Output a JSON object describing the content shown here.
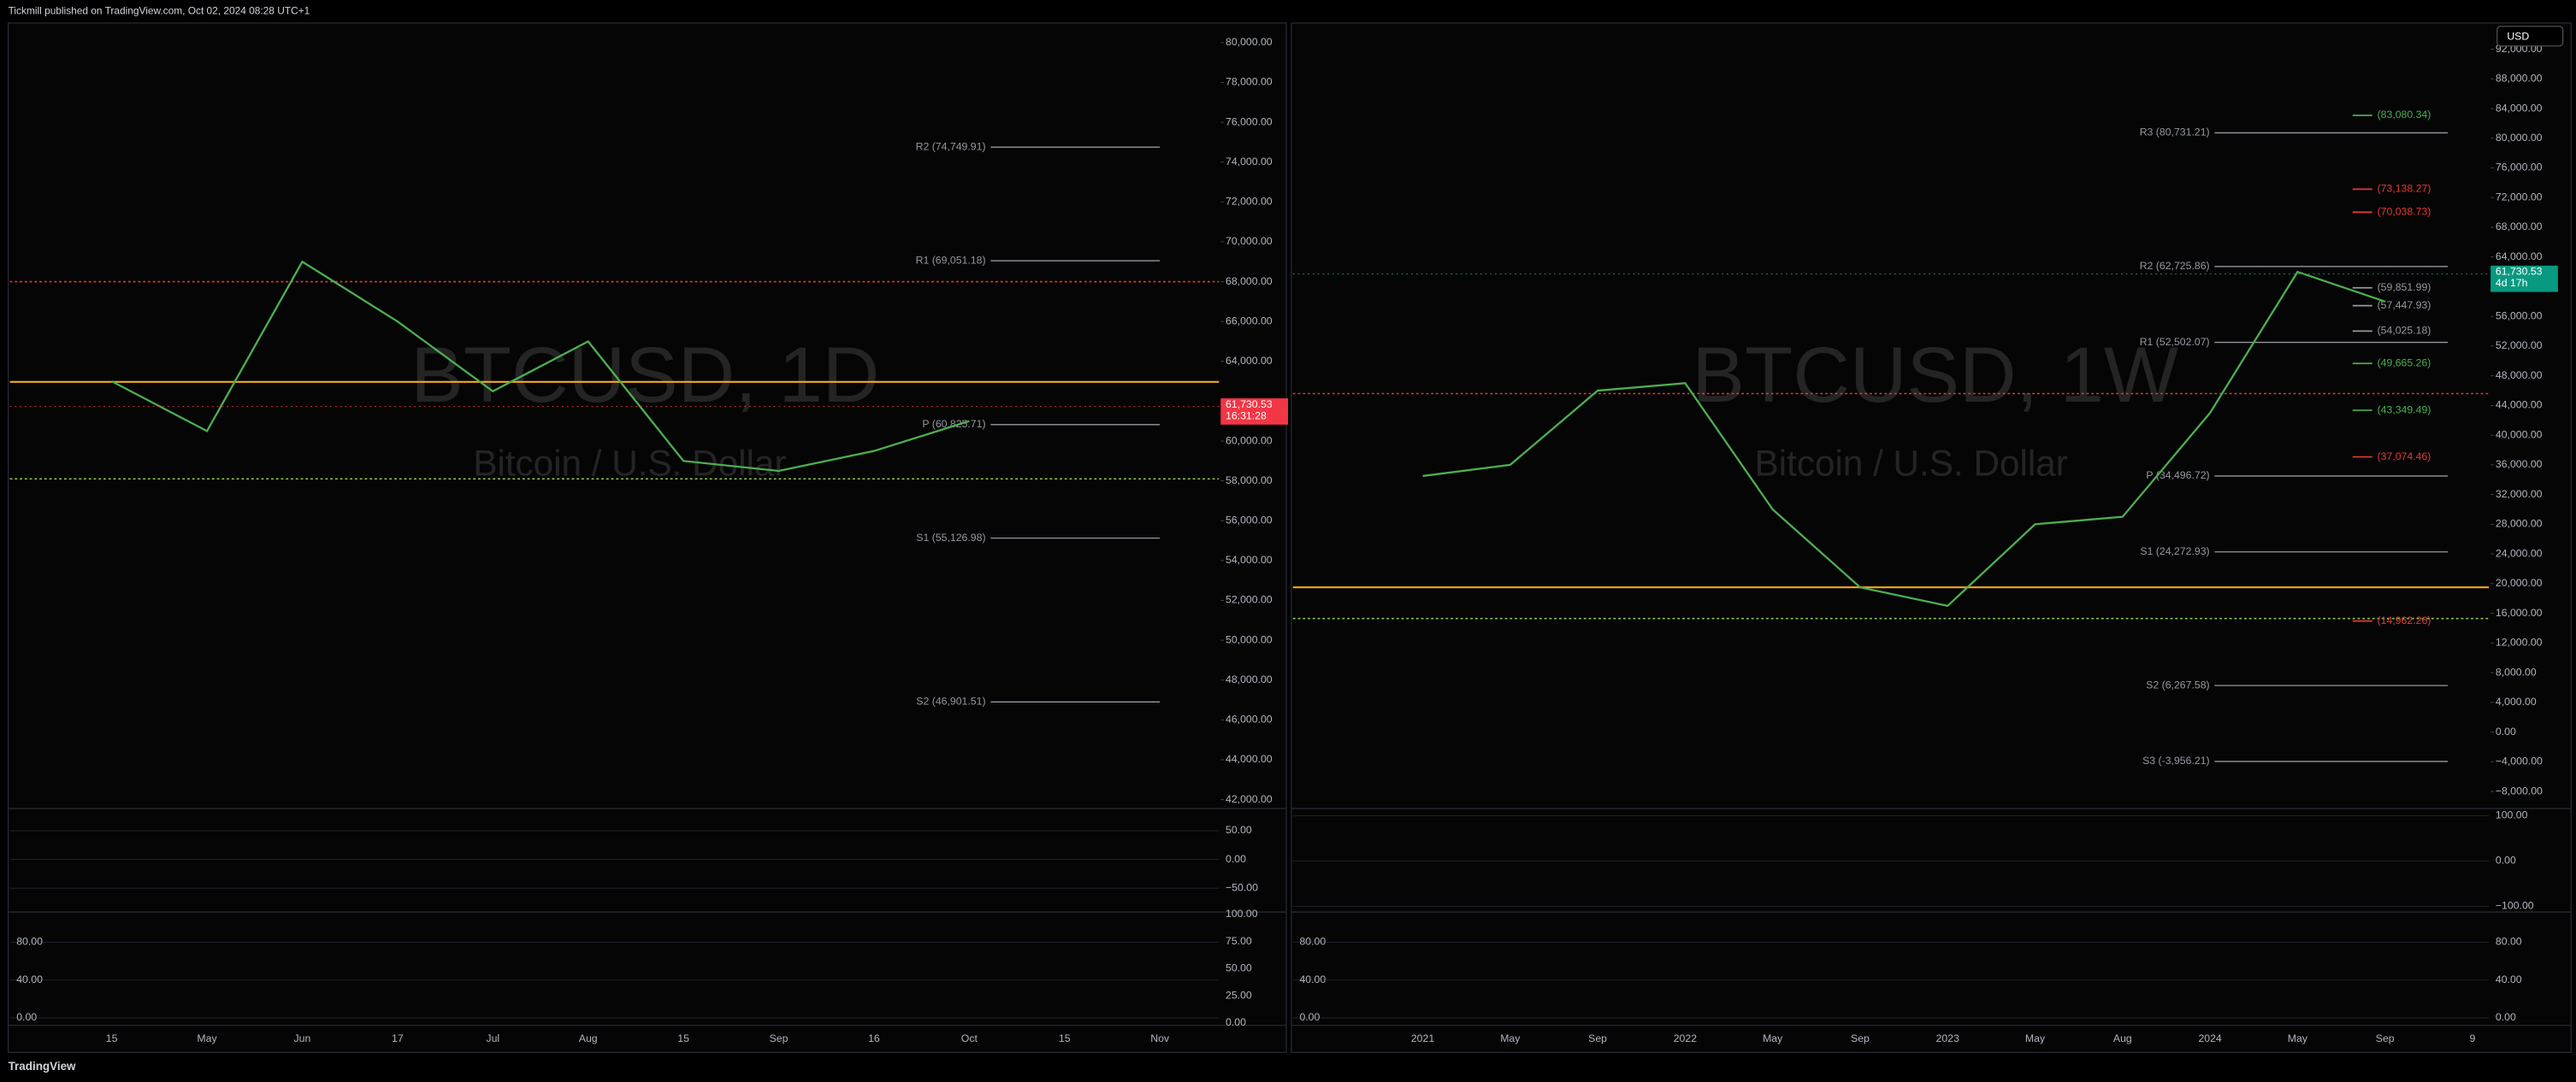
{
  "header": "Tickmill published on TradingView.com, Oct 02, 2024 08:28 UTC+1",
  "footer": "TradingView",
  "chart_data": [
    {
      "type": "line",
      "title": "BTCUSD, 1D",
      "subtitle": "Bitcoin / U.S. Dollar",
      "categories": [
        "15",
        "May",
        "Jun",
        "17",
        "Jul",
        "Aug",
        "15",
        "Sep",
        "16",
        "Oct",
        "15",
        "Nov"
      ],
      "values": [
        63000,
        60500,
        69000,
        66000,
        62500,
        65000,
        59000,
        58500,
        59500,
        61000,
        null,
        null
      ],
      "color": "#4caf50",
      "ylim": [
        41590,
        80900
      ],
      "yticks": [
        {
          "value": 42000,
          "label": "42,000.00"
        },
        {
          "value": 44000,
          "label": "44,000.00"
        },
        {
          "value": 46000,
          "label": "46,000.00"
        },
        {
          "value": 48000,
          "label": "48,000.00"
        },
        {
          "value": 50000,
          "label": "50,000.00"
        },
        {
          "value": 52000,
          "label": "52,000.00"
        },
        {
          "value": 54000,
          "label": "54,000.00"
        },
        {
          "value": 56000,
          "label": "56,000.00"
        },
        {
          "value": 58000,
          "label": "58,000.00"
        },
        {
          "value": 60000,
          "label": "60,000.00"
        },
        {
          "value": 64000,
          "label": "64,000.00"
        },
        {
          "value": 66000,
          "label": "66,000.00"
        },
        {
          "value": 68000,
          "label": "68,000.00"
        },
        {
          "value": 70000,
          "label": "70,000.00"
        },
        {
          "value": 72000,
          "label": "72,000.00"
        },
        {
          "value": 74000,
          "label": "74,000.00"
        },
        {
          "value": 76000,
          "label": "76,000.00"
        },
        {
          "value": 78000,
          "label": "78,000.00"
        },
        {
          "value": 80000,
          "label": "80,000.00"
        }
      ],
      "last_price": {
        "value": 61730.53,
        "label": "61,730.53",
        "color": "#f23645"
      },
      "countdown": "16:31:28",
      "pivot_levels": [
        {
          "value": 74749.91,
          "label": "R2 (74,749.91)"
        },
        {
          "value": 69051.18,
          "label": "R1 (69,051.18)"
        },
        {
          "value": 60825.71,
          "label": "P (60,825.71)"
        },
        {
          "value": 55126.98,
          "label": "S1 (55,126.98)"
        },
        {
          "value": 46901.51,
          "label": "S2 (46,901.51)"
        }
      ],
      "levels": [],
      "hlines": [
        {
          "value": 62970,
          "color": "#f5a623",
          "dash": false
        },
        {
          "value": 68000,
          "color": "#e53935",
          "dash": true
        },
        {
          "value": 58100,
          "color": "#8bc34a",
          "dash": true
        }
      ],
      "panels": [
        {
          "ylim": [
            -90,
            87
          ],
          "yticks": [
            {
              "value": 50,
              "label": "50.00"
            },
            {
              "value": 0,
              "label": "0.00"
            },
            {
              "value": -50,
              "label": "−50.00"
            }
          ]
        },
        {
          "ylim": [
            -7,
            111
          ],
          "yticks": [
            {
              "value": 80,
              "label": "80.00"
            },
            {
              "value": 40,
              "label": "40.00"
            },
            {
              "value": 0,
              "label": "0.00"
            }
          ],
          "y2lim": [
            -1.5,
            101.5
          ],
          "y2ticks": [
            {
              "value": 100,
              "label": "100.00"
            },
            {
              "value": 75,
              "label": "75.00"
            },
            {
              "value": 50,
              "label": "50.00"
            },
            {
              "value": 25,
              "label": "25.00"
            },
            {
              "value": 0,
              "label": "0.00"
            }
          ]
        }
      ]
    },
    {
      "type": "line",
      "title": "BTCUSD, 1W",
      "subtitle": "Bitcoin / U.S. Dollar",
      "currency": "USD",
      "categories": [
        "2021",
        "May",
        "Sep",
        "2022",
        "May",
        "Sep",
        "2023",
        "May",
        "Aug",
        "2024",
        "May",
        "Sep",
        "9"
      ],
      "values": [
        34500,
        36000,
        46000,
        47000,
        30000,
        19500,
        17000,
        28000,
        29000,
        43000,
        62000,
        58000,
        null
      ],
      "color": "#4caf50",
      "ylim": [
        -10200,
        95300
      ],
      "yticks": [
        {
          "value": -8000,
          "label": "−8,000.00"
        },
        {
          "value": -4000,
          "label": "−4,000.00"
        },
        {
          "value": 0,
          "label": "0.00"
        },
        {
          "value": 4000,
          "label": "4,000.00"
        },
        {
          "value": 8000,
          "label": "8,000.00"
        },
        {
          "value": 12000,
          "label": "12,000.00"
        },
        {
          "value": 16000,
          "label": "16,000.00"
        },
        {
          "value": 20000,
          "label": "20,000.00"
        },
        {
          "value": 24000,
          "label": "24,000.00"
        },
        {
          "value": 28000,
          "label": "28,000.00"
        },
        {
          "value": 32000,
          "label": "32,000.00"
        },
        {
          "value": 36000,
          "label": "36,000.00"
        },
        {
          "value": 40000,
          "label": "40,000.00"
        },
        {
          "value": 44000,
          "label": "44,000.00"
        },
        {
          "value": 48000,
          "label": "48,000.00"
        },
        {
          "value": 52000,
          "label": "52,000.00"
        },
        {
          "value": 56000,
          "label": "56,000.00"
        },
        {
          "value": 64000,
          "label": "64,000.00"
        },
        {
          "value": 68000,
          "label": "68,000.00"
        },
        {
          "value": 72000,
          "label": "72,000.00"
        },
        {
          "value": 76000,
          "label": "76,000.00"
        },
        {
          "value": 80000,
          "label": "80,000.00"
        },
        {
          "value": 84000,
          "label": "84,000.00"
        },
        {
          "value": 88000,
          "label": "88,000.00"
        },
        {
          "value": 92000,
          "label": "92,000.00"
        }
      ],
      "last_price": {
        "value": 61730.53,
        "label": "61,730.53",
        "color": "#089981"
      },
      "countdown": "4d 17h",
      "pivot_levels": [
        {
          "value": 80731.21,
          "label": "R3 (80,731.21)"
        },
        {
          "value": 62725.86,
          "label": "R2 (62,725.86)"
        },
        {
          "value": 52502.07,
          "label": "R1 (52,502.07)"
        },
        {
          "value": 34496.72,
          "label": "P (34,496.72)"
        },
        {
          "value": 24272.93,
          "label": "S1 (24,272.93)"
        },
        {
          "value": 6267.58,
          "label": "S2 (6,267.58)"
        },
        {
          "value": -3956.21,
          "label": "S3 (-3,956.21)"
        }
      ],
      "levels": [
        {
          "value": 83080.34,
          "label": "(83,080.34)",
          "color": "#4caf50"
        },
        {
          "value": 73138.27,
          "label": "(73,138.27)",
          "color": "#e53935"
        },
        {
          "value": 70038.73,
          "label": "(70,038.73)",
          "color": "#e53935"
        },
        {
          "value": 59851.99,
          "label": "(59,851.99)",
          "color": "#9598a1"
        },
        {
          "value": 57447.93,
          "label": "(57,447.93)",
          "color": "#9598a1"
        },
        {
          "value": 54025.18,
          "label": "(54,025.18)",
          "color": "#9598a1"
        },
        {
          "value": 49665.26,
          "label": "(49,665.26)",
          "color": "#4caf50"
        },
        {
          "value": 43349.49,
          "label": "(43,349.49)",
          "color": "#4caf50"
        },
        {
          "value": 37074.46,
          "label": "(37,074.46)",
          "color": "#e53935"
        },
        {
          "value": 14962.26,
          "label": "(14,962.26)",
          "color": "#e53935"
        }
      ],
      "hlines": [
        {
          "value": 19500,
          "color": "#f5a623",
          "dash": false
        },
        {
          "value": 45600,
          "color": "#e53935",
          "dash": true
        },
        {
          "value": 15300,
          "color": "#8bc34a",
          "dash": true
        }
      ],
      "panels": [
        {
          "ylim": [
            -111,
            114
          ],
          "yticks": [
            {
              "value": 100,
              "label": "100.00"
            },
            {
              "value": 0,
              "label": "0.00"
            },
            {
              "value": -100,
              "label": "−100.00"
            }
          ]
        },
        {
          "ylim": [
            -7,
            111
          ],
          "yticks": [
            {
              "value": 80,
              "label": "80.00"
            },
            {
              "value": 40,
              "label": "40.00"
            },
            {
              "value": 0,
              "label": "0.00"
            }
          ],
          "y2lim": [
            -7,
            111
          ],
          "y2ticks": [
            {
              "value": 80,
              "label": "80.00"
            },
            {
              "value": 40,
              "label": "40.00"
            },
            {
              "value": 0,
              "label": "0.00"
            }
          ]
        }
      ]
    }
  ]
}
